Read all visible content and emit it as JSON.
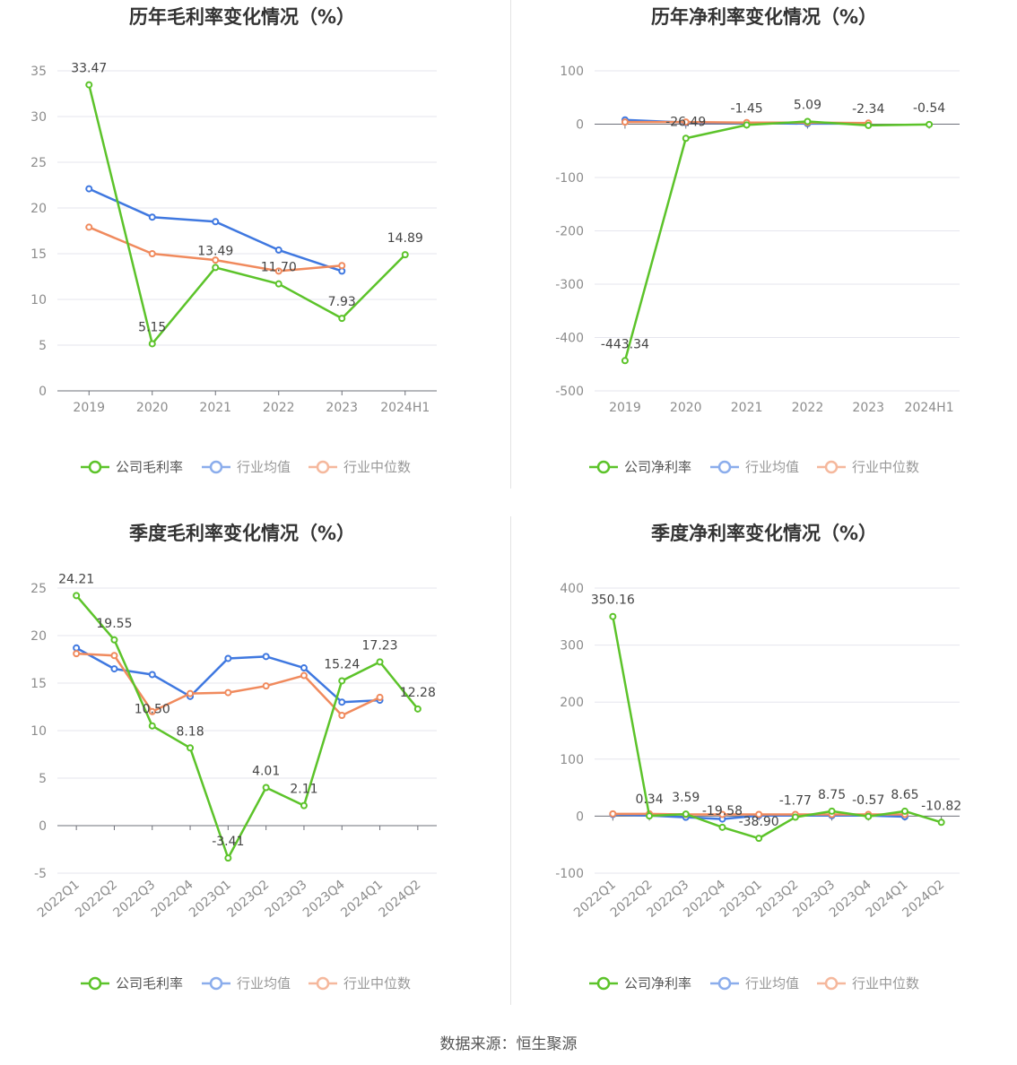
{
  "legend": {
    "gross": [
      "公司毛利率",
      "行业均值",
      "行业中位数"
    ],
    "net": [
      "公司净利率",
      "行业均值",
      "行业中位数"
    ]
  },
  "colors": {
    "company": "#5cc32a",
    "avg": "#3f78e0",
    "median": "#f08a5d"
  },
  "footer": "数据来源：恒生聚源",
  "chart_data": [
    {
      "type": "line",
      "title": "历年毛利率变化情况（%）",
      "categories": [
        "2019",
        "2020",
        "2021",
        "2022",
        "2023",
        "2024H1"
      ],
      "ylim": [
        0,
        35
      ],
      "yticks": [
        0,
        5,
        10,
        15,
        20,
        25,
        30,
        35
      ],
      "series": [
        {
          "name": "公司毛利率",
          "values": [
            33.47,
            5.15,
            13.49,
            11.7,
            7.93,
            14.89
          ],
          "labels": [
            "33.47",
            "5.15",
            "13.49",
            "11.70",
            "7.93",
            "14.89"
          ]
        },
        {
          "name": "行业均值",
          "values": [
            22.1,
            19.0,
            18.5,
            15.4,
            13.1,
            null
          ]
        },
        {
          "name": "行业中位数",
          "values": [
            17.9,
            15.0,
            14.3,
            13.1,
            13.7,
            null
          ]
        }
      ]
    },
    {
      "type": "line",
      "title": "历年净利率变化情况（%）",
      "categories": [
        "2019",
        "2020",
        "2021",
        "2022",
        "2023",
        "2024H1"
      ],
      "ylim": [
        -500,
        100
      ],
      "yticks": [
        -500,
        -400,
        -300,
        -200,
        -100,
        0,
        100
      ],
      "series": [
        {
          "name": "公司净利率",
          "values": [
            -443.34,
            -26.49,
            -1.45,
            5.09,
            -2.34,
            -0.54
          ],
          "labels": [
            "-443.34",
            "-26.49",
            "-1.45",
            "5.09",
            "-2.34",
            "-0.54"
          ]
        },
        {
          "name": "行业均值",
          "values": [
            8.0,
            3.0,
            2.0,
            1.0,
            1.0,
            null
          ]
        },
        {
          "name": "行业中位数",
          "values": [
            4.0,
            4.0,
            3.0,
            3.0,
            2.0,
            null
          ]
        }
      ]
    },
    {
      "type": "line",
      "title": "季度毛利率变化情况（%）",
      "categories": [
        "2022Q1",
        "2022Q2",
        "2022Q3",
        "2022Q4",
        "2023Q1",
        "2023Q2",
        "2023Q3",
        "2023Q4",
        "2024Q1",
        "2024Q2"
      ],
      "ylim": [
        -5,
        25
      ],
      "yticks": [
        -5,
        0,
        5,
        10,
        15,
        20,
        25
      ],
      "series": [
        {
          "name": "公司毛利率",
          "values": [
            24.21,
            19.55,
            10.5,
            8.18,
            -3.41,
            4.01,
            2.11,
            15.24,
            17.23,
            12.28
          ],
          "labels": [
            "24.21",
            "19.55",
            "10.50",
            "8.18",
            "-3.41",
            "4.01",
            "2.11",
            "15.24",
            "17.23",
            "12.28"
          ]
        },
        {
          "name": "行业均值",
          "values": [
            18.7,
            16.5,
            15.9,
            13.6,
            17.6,
            17.8,
            16.6,
            13.0,
            13.2,
            null
          ]
        },
        {
          "name": "行业中位数",
          "values": [
            18.1,
            17.9,
            12.0,
            13.9,
            14.0,
            14.7,
            15.8,
            11.6,
            13.5,
            null
          ]
        }
      ]
    },
    {
      "type": "line",
      "title": "季度净利率变化情况（%）",
      "categories": [
        "2022Q1",
        "2022Q2",
        "2022Q3",
        "2022Q4",
        "2023Q1",
        "2023Q2",
        "2023Q3",
        "2023Q4",
        "2024Q1",
        "2024Q2"
      ],
      "ylim": [
        -100,
        400
      ],
      "yticks": [
        -100,
        0,
        100,
        200,
        300,
        400
      ],
      "series": [
        {
          "name": "公司净利率",
          "values": [
            350.16,
            0.34,
            3.59,
            -19.58,
            -38.9,
            -1.77,
            8.75,
            -0.57,
            8.65,
            -10.82
          ],
          "labels": [
            "350.16",
            "0.34",
            "3.59",
            "-19.58",
            "-38.90",
            "-1.77",
            "8.75",
            "-0.57",
            "8.65",
            "-10.82"
          ]
        },
        {
          "name": "行业均值",
          "values": [
            3.0,
            1.0,
            -2.0,
            -5.0,
            1.0,
            1.0,
            1.0,
            1.0,
            -1.0,
            null
          ]
        },
        {
          "name": "行业中位数",
          "values": [
            4.0,
            4.0,
            3.0,
            3.0,
            3.0,
            3.0,
            3.0,
            3.0,
            3.0,
            null
          ]
        }
      ]
    }
  ]
}
